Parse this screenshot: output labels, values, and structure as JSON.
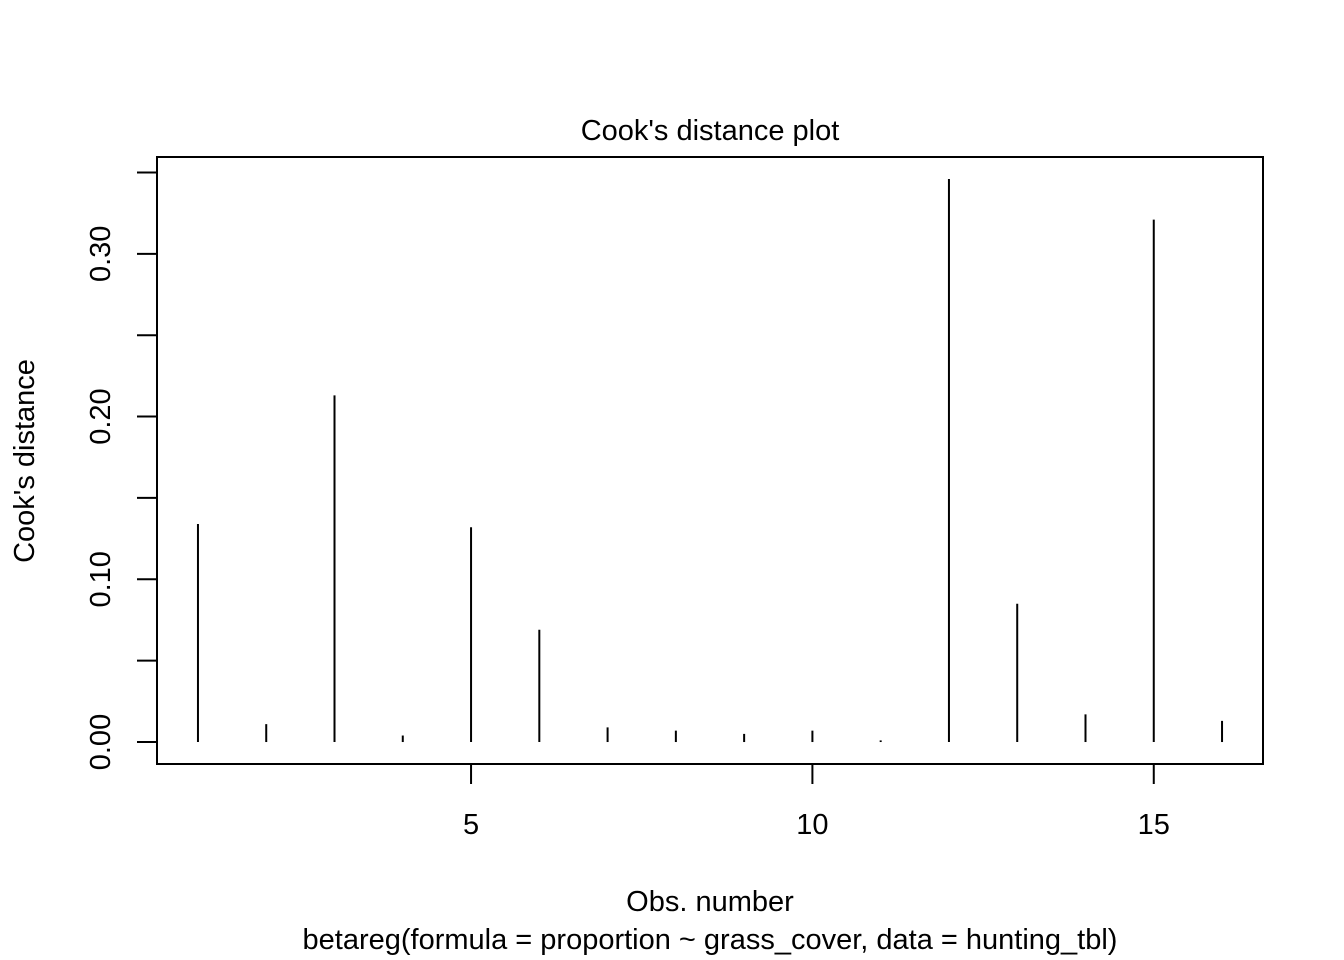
{
  "chart_data": {
    "type": "bar",
    "title": "Cook's distance plot",
    "xlabel": "Obs. number",
    "subtitle": "betareg(formula = proportion ~ grass_cover, data = hunting_tbl)",
    "ylabel": "Cook's distance",
    "x": [
      1,
      2,
      3,
      4,
      5,
      6,
      7,
      8,
      9,
      10,
      11,
      12,
      13,
      14,
      15,
      16
    ],
    "values": [
      0.134,
      0.011,
      0.213,
      0.004,
      0.132,
      0.069,
      0.009,
      0.007,
      0.005,
      0.007,
      0.001,
      0.346,
      0.085,
      0.017,
      0.321,
      0.013
    ],
    "xlim": [
      0.4,
      16.6
    ],
    "ylim": [
      -0.0135,
      0.3595
    ],
    "x_ticks": [
      5,
      10,
      15
    ],
    "x_tick_labels": [
      "5",
      "10",
      "15"
    ],
    "y_ticks": [
      0.0,
      0.05,
      0.1,
      0.15,
      0.2,
      0.25,
      0.3,
      0.35
    ],
    "y_tick_labels": [
      "0.00",
      "",
      "0.10",
      "",
      "0.20",
      "",
      "0.30",
      ""
    ],
    "grid": false,
    "legend": "none"
  }
}
